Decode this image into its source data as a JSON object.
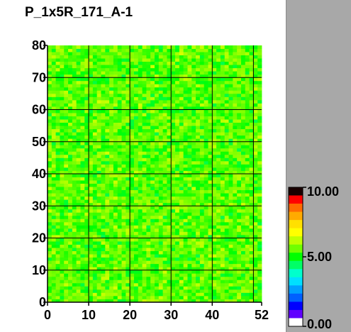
{
  "chart_data": {
    "type": "heatmap",
    "title": "P_1x5R_171_A-1",
    "xlabel": "",
    "ylabel": "",
    "xlim": [
      0,
      52
    ],
    "ylim": [
      0,
      80
    ],
    "x_ticks": [
      0,
      10,
      20,
      30,
      40,
      52
    ],
    "x_tick_labels": [
      "0",
      "10",
      "20",
      "30",
      "40",
      "52"
    ],
    "y_ticks": [
      0,
      10,
      20,
      30,
      40,
      50,
      60,
      70,
      80
    ],
    "y_tick_labels": [
      "0",
      "10",
      "20",
      "30",
      "40",
      "50",
      "60",
      "70",
      "80"
    ],
    "grid": true,
    "grid_x": [
      10,
      20,
      30,
      40,
      50
    ],
    "grid_y": [
      10,
      20,
      30,
      40,
      50,
      60,
      70
    ],
    "cells": {
      "columns": 52,
      "rows": 80,
      "typical_value": 5.5,
      "value_range": [
        4.5,
        6.5
      ],
      "note_values_estimated": "uniform noisy field around 5.5"
    },
    "colorbar": {
      "min": 0.0,
      "max": 10.0,
      "labels": [
        "10.00",
        "5.00",
        "0.00"
      ],
      "label_values": [
        10.0,
        5.0,
        0.0
      ],
      "colors": [
        "#1a0000",
        "#ff0000",
        "#ff6a00",
        "#ffaa00",
        "#ffe000",
        "#ffff00",
        "#c0ff00",
        "#70ff00",
        "#00ff00",
        "#00ff66",
        "#00ffcc",
        "#00e0ff",
        "#00a0ff",
        "#0060ff",
        "#0000ff",
        "#6000ff",
        "#ffffff"
      ]
    }
  }
}
